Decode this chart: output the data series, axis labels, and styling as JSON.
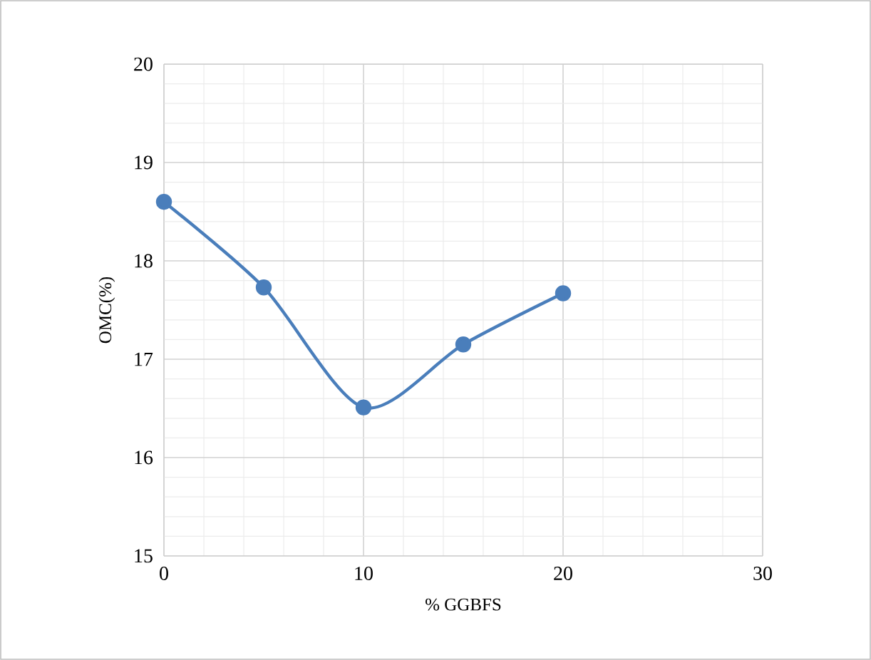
{
  "chart_data": {
    "type": "line",
    "xlabel": "% GGBFS",
    "ylabel": "OMC(%)",
    "x": [
      0,
      5,
      10,
      15,
      20
    ],
    "series": [
      {
        "color": "#4a7ebb",
        "values": [
          18.6,
          17.73,
          16.51,
          17.15,
          17.67
        ]
      }
    ],
    "xlim": [
      0,
      30
    ],
    "ylim": [
      15,
      20
    ],
    "xticks": [
      0,
      10,
      20,
      30
    ],
    "yticks": [
      15,
      16,
      17,
      18,
      19,
      20
    ],
    "grid": true,
    "marker": "circle",
    "line_style": "solid"
  }
}
